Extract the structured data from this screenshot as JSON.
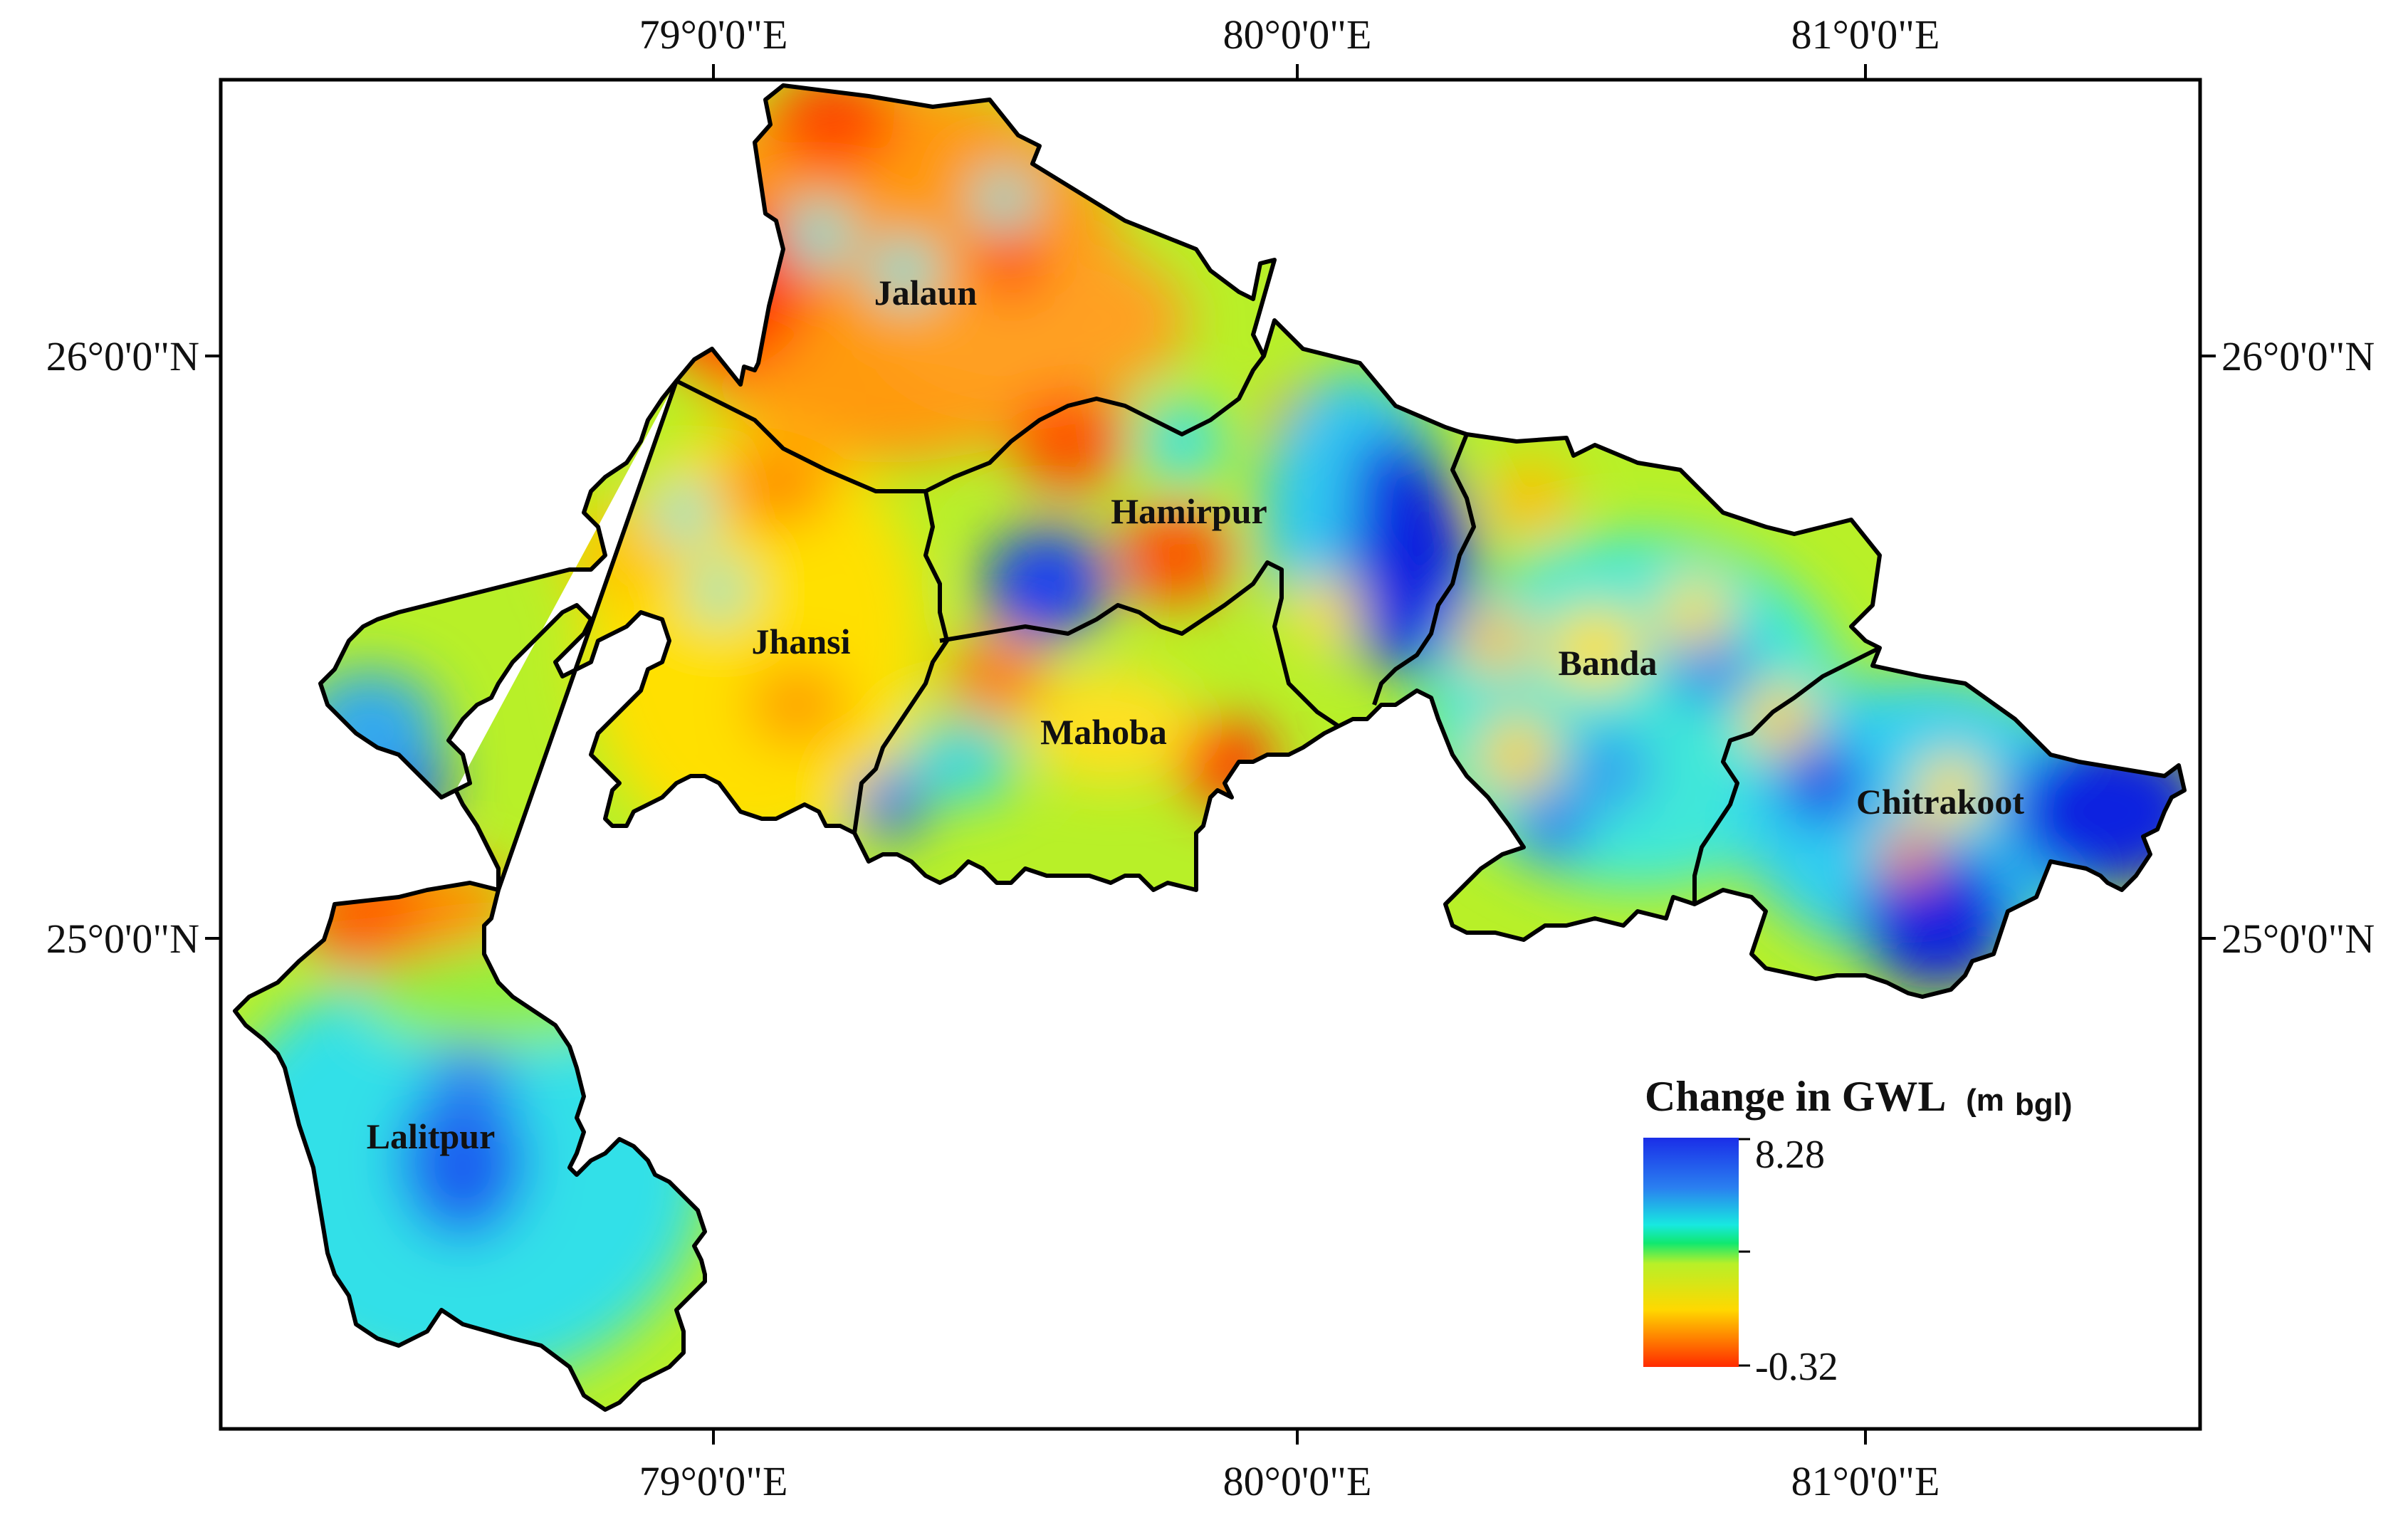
{
  "map": {
    "longitude_ticks": [
      "79°0'0\"E",
      "80°0'0\"E",
      "81°0'0\"E"
    ],
    "latitude_ticks": [
      "26°0'0\"N",
      "25°0'0\"N"
    ],
    "districts": [
      {
        "id": "jalaun",
        "name": "Jalaun"
      },
      {
        "id": "hamirpur",
        "name": "Hamirpur"
      },
      {
        "id": "jhansi",
        "name": "Jhansi"
      },
      {
        "id": "banda",
        "name": "Banda"
      },
      {
        "id": "mahoba",
        "name": "Mahoba"
      },
      {
        "id": "chitrakoot",
        "name": "Chitrakoot"
      },
      {
        "id": "lalitpur",
        "name": "Lalitpur"
      }
    ],
    "legend": {
      "title": "Change in GWL",
      "unit_prefix": "(m",
      "unit_sub": "bgl)",
      "max": "8.28",
      "min": "-0.32"
    },
    "colors": {
      "high": "#1a2ee8",
      "mid_high": "#18e8e0",
      "mid": "#b8f028",
      "mid_low": "#ffd800",
      "low": "#ff2a00"
    }
  }
}
